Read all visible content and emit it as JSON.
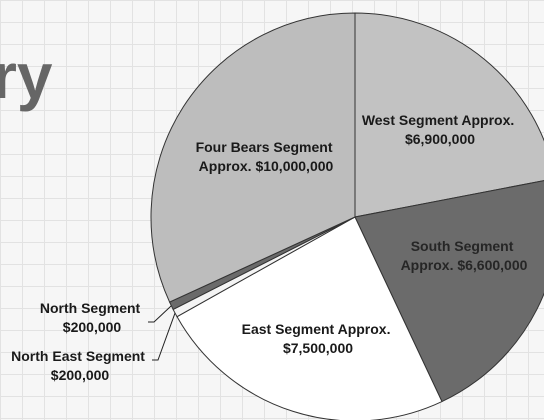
{
  "title_fragment": "ry",
  "chart_data": {
    "type": "pie",
    "slices": [
      {
        "name": "West Segment",
        "value": 6900000,
        "label": [
          "West Segment  Approx.",
          "$6,900,000"
        ],
        "color": "#c2c2c2"
      },
      {
        "name": "South Segment",
        "value": 6600000,
        "label": [
          "South Segment",
          "Approx. $6,600,000"
        ],
        "color": "#6b6b6b"
      },
      {
        "name": "East Segment",
        "value": 7500000,
        "label": [
          "East Segment  Approx.",
          "$7,500,000"
        ],
        "color": "#ffffff"
      },
      {
        "name": "North East Segment",
        "value": 200000,
        "label": [
          "North East Segment",
          "$200,000"
        ],
        "color": "#f4f4f4"
      },
      {
        "name": "North Segment",
        "value": 200000,
        "label": [
          "North Segment",
          "$200,000"
        ],
        "color": "#6a6a6a"
      },
      {
        "name": "Four Bears Segment",
        "value": 10000000,
        "label": [
          "Four Bears Segment",
          "Approx. $10,000,000"
        ],
        "color": "#bdbdbd"
      }
    ]
  }
}
